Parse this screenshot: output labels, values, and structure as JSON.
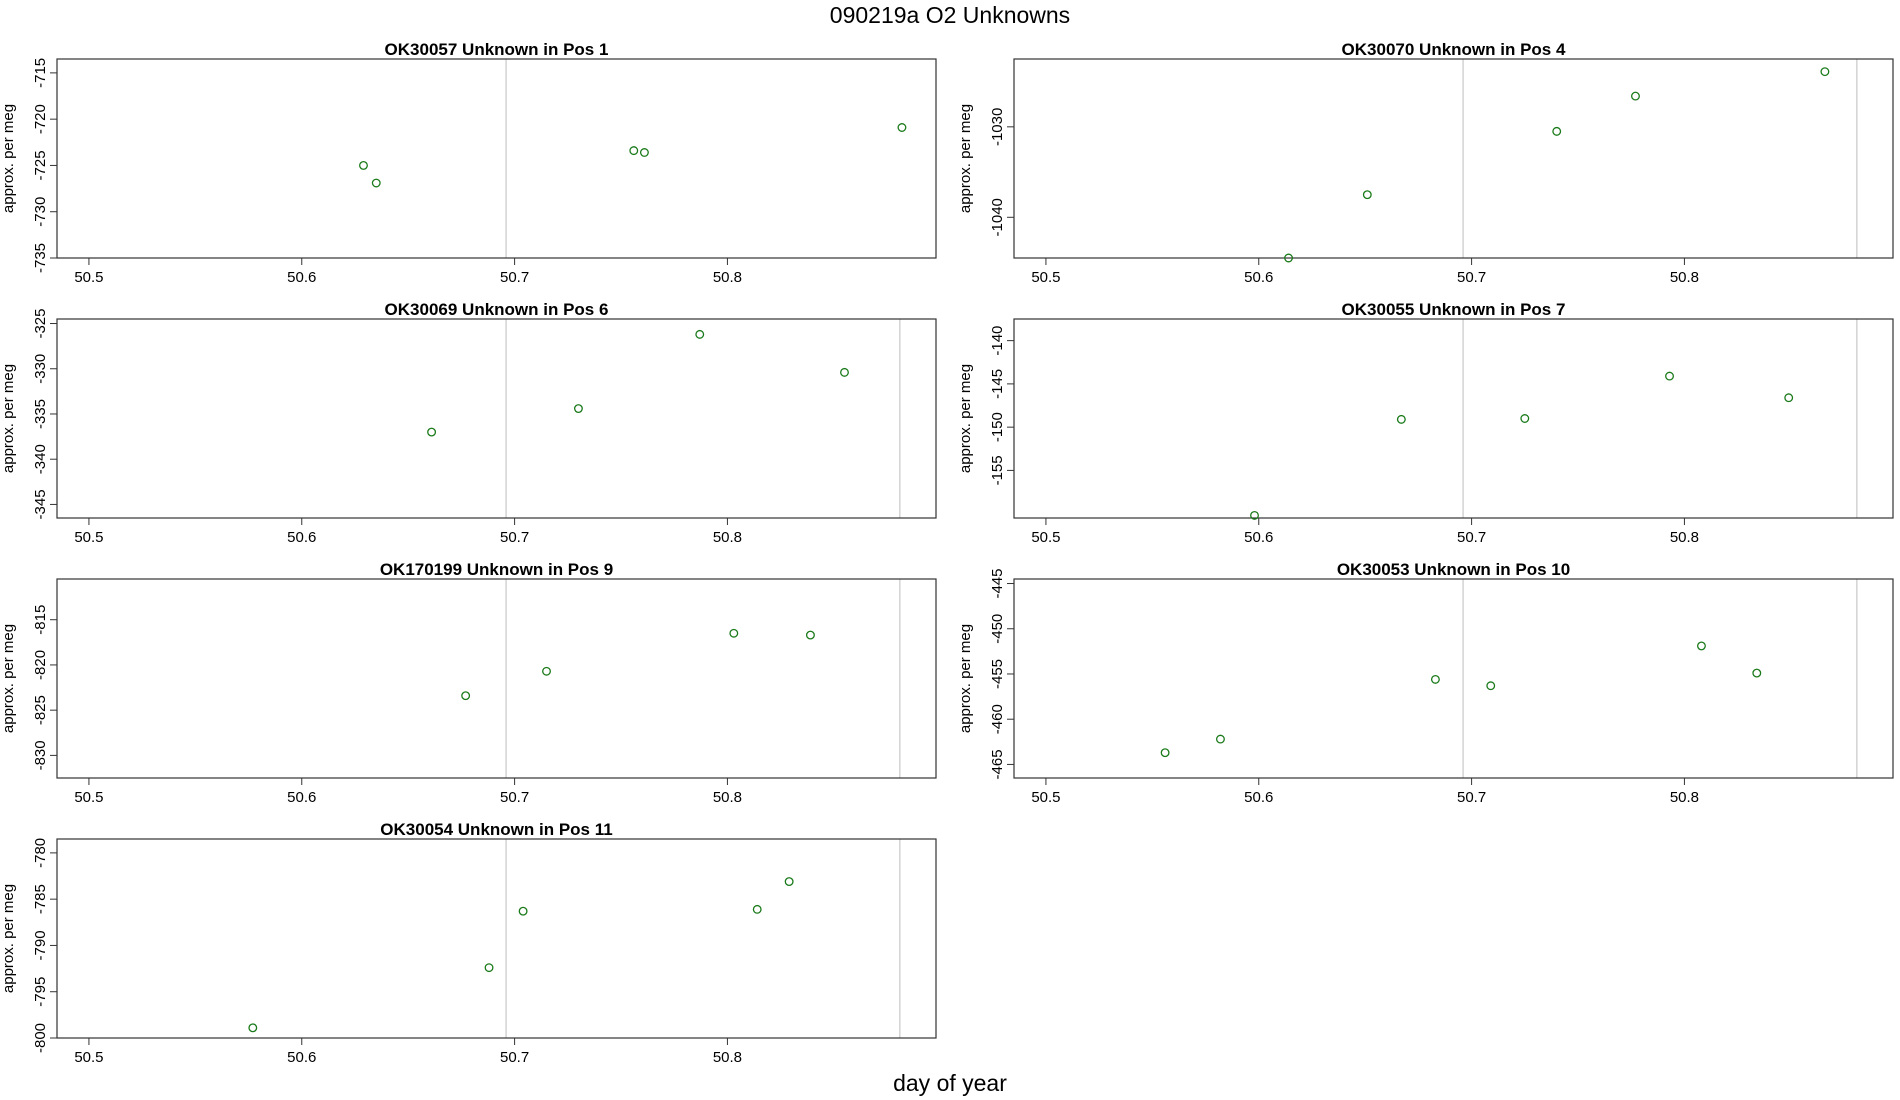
{
  "figure": {
    "title": "090219a  O2 Unknowns",
    "xlabel": "day of year"
  },
  "colors": {
    "points": "#1a7a1a",
    "frame": "#333333",
    "vline": "#d3d3d3"
  },
  "chart_data": [
    {
      "type": "scatter",
      "title": "OK30057    Unknown in Pos 1",
      "xlabel": "",
      "ylabel": "approx. per meg",
      "xlim": [
        50.485,
        50.898
      ],
      "ylim": [
        -735,
        -713.5
      ],
      "xticks": [
        50.5,
        50.6,
        50.7,
        50.8
      ],
      "yticks": [
        -715,
        -720,
        -725,
        -730,
        -735
      ],
      "vlines": [
        50.696
      ],
      "series": [
        {
          "x": [
            50.629,
            50.635,
            50.756,
            50.761,
            50.882
          ],
          "y": [
            -725,
            -726.9,
            -723.4,
            -723.6,
            -720.9
          ]
        }
      ]
    },
    {
      "type": "scatter",
      "title": "OK30070    Unknown in Pos 4",
      "xlabel": "",
      "ylabel": "approx. per meg",
      "xlim": [
        50.485,
        50.898
      ],
      "ylim": [
        -1044.5,
        -1022.5
      ],
      "xticks": [
        50.5,
        50.6,
        50.7,
        50.8
      ],
      "yticks": [
        -1030,
        -1040
      ],
      "vlines": [
        50.696,
        50.881
      ],
      "series": [
        {
          "x": [
            50.614,
            50.651,
            50.74,
            50.777,
            50.866
          ],
          "y": [
            -1044.5,
            -1037.5,
            -1030.5,
            -1026.6,
            -1023.9
          ]
        }
      ]
    },
    {
      "type": "scatter",
      "title": "OK30069    Unknown in Pos 6",
      "xlabel": "",
      "ylabel": "approx. per meg",
      "xlim": [
        50.485,
        50.898
      ],
      "ylim": [
        -346.5,
        -324.5
      ],
      "xticks": [
        50.5,
        50.6,
        50.7,
        50.8
      ],
      "yticks": [
        -325,
        -330,
        -335,
        -340,
        -345
      ],
      "vlines": [
        50.696,
        50.881
      ],
      "series": [
        {
          "x": [
            50.661,
            50.73,
            50.787,
            50.855
          ],
          "y": [
            -337,
            -334.4,
            -326.2,
            -330.4
          ]
        }
      ]
    },
    {
      "type": "scatter",
      "title": "OK30055    Unknown in Pos 7",
      "xlabel": "",
      "ylabel": "approx. per meg",
      "xlim": [
        50.485,
        50.898
      ],
      "ylim": [
        -160.5,
        -137.5
      ],
      "xticks": [
        50.5,
        50.6,
        50.7,
        50.8
      ],
      "yticks": [
        -140,
        -145,
        -150,
        -155
      ],
      "vlines": [
        50.696,
        50.881
      ],
      "series": [
        {
          "x": [
            50.598,
            50.667,
            50.725,
            50.793,
            50.849
          ],
          "y": [
            -160.2,
            -149.1,
            -149.0,
            -144.1,
            -146.6
          ]
        }
      ]
    },
    {
      "type": "scatter",
      "title": "OK170199    Unknown in Pos 9",
      "xlabel": "",
      "ylabel": "approx. per meg",
      "xlim": [
        50.485,
        50.898
      ],
      "ylim": [
        -832.5,
        -810.5
      ],
      "xticks": [
        50.5,
        50.6,
        50.7,
        50.8
      ],
      "yticks": [
        -815,
        -820,
        -825,
        -830
      ],
      "vlines": [
        50.696,
        50.881
      ],
      "series": [
        {
          "x": [
            50.677,
            50.715,
            50.803,
            50.839
          ],
          "y": [
            -823.4,
            -820.7,
            -816.5,
            -816.7
          ]
        }
      ]
    },
    {
      "type": "scatter",
      "title": "OK30053    Unknown in Pos 10",
      "xlabel": "",
      "ylabel": "approx. per meg",
      "xlim": [
        50.485,
        50.898
      ],
      "ylim": [
        -466.5,
        -444.5
      ],
      "xticks": [
        50.5,
        50.6,
        50.7,
        50.8
      ],
      "yticks": [
        -445,
        -450,
        -455,
        -460,
        -465
      ],
      "vlines": [
        50.696,
        50.881
      ],
      "series": [
        {
          "x": [
            50.556,
            50.582,
            50.683,
            50.709,
            50.808,
            50.834
          ],
          "y": [
            -463.7,
            -462.2,
            -455.6,
            -456.3,
            -451.9,
            -454.9
          ]
        }
      ]
    },
    {
      "type": "scatter",
      "title": "OK30054    Unknown in Pos 11",
      "xlabel": "",
      "ylabel": "approx. per meg",
      "xlim": [
        50.485,
        50.898
      ],
      "ylim": [
        -800,
        -778.5
      ],
      "xticks": [
        50.5,
        50.6,
        50.7,
        50.8
      ],
      "yticks": [
        -780,
        -785,
        -790,
        -795,
        -800
      ],
      "vlines": [
        50.696,
        50.881
      ],
      "series": [
        {
          "x": [
            50.577,
            50.688,
            50.704,
            50.814,
            50.829
          ],
          "y": [
            -798.9,
            -792.4,
            -786.3,
            -786.1,
            -783.1
          ]
        }
      ]
    }
  ]
}
